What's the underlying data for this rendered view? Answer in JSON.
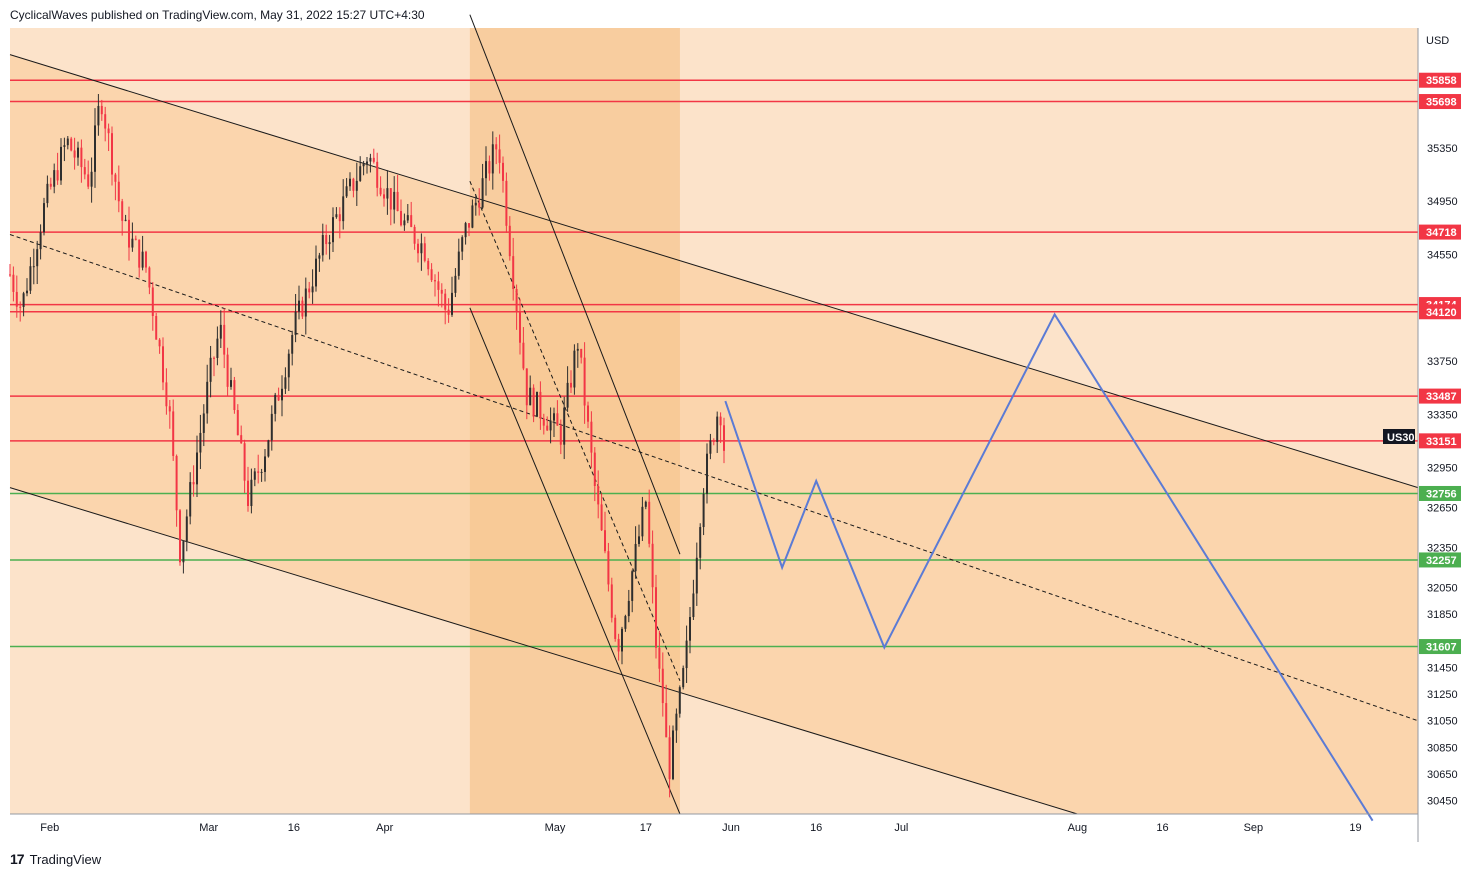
{
  "header": {
    "publisher": "CyclicalWaves",
    "published_text": "published on TradingView.com, May 31, 2022 15:27 UTC+4:30"
  },
  "footer": {
    "brand": "TradingView",
    "logo_glyph": "17"
  },
  "colors": {
    "background": "#fce3ca",
    "zone": "#fbd5ad",
    "zone_dark": "#f7c690",
    "resistance": "#f23645",
    "support": "#4caf50",
    "projection": "#5b7bd5",
    "candle_up": "#2e2e2e",
    "candle_down": "#f23645"
  },
  "chart_data": {
    "type": "candlestick",
    "symbol": "US30",
    "currency": "USD",
    "x_ticks": [
      "Feb",
      "Mar",
      "16",
      "Apr",
      "May",
      "17",
      "Jun",
      "16",
      "Jul",
      "Aug",
      "16",
      "Sep",
      "19"
    ],
    "y_ticks": [
      35350,
      34950,
      34550,
      33750,
      33350,
      32950,
      32650,
      32350,
      32050,
      31850,
      31450,
      31250,
      31050,
      30850,
      30650,
      30450
    ],
    "ylim": [
      30350,
      36250
    ],
    "horizontal_levels": [
      {
        "value": 35858,
        "label": "35858",
        "kind": "resistance"
      },
      {
        "value": 35698,
        "label": "35698",
        "kind": "resistance"
      },
      {
        "value": 34718,
        "label": "34718",
        "kind": "resistance"
      },
      {
        "value": 34174,
        "label": "34174",
        "kind": "resistance"
      },
      {
        "value": 34120,
        "label": "34120",
        "kind": "resistance"
      },
      {
        "value": 33487,
        "label": "33487",
        "kind": "resistance"
      },
      {
        "value": 33151,
        "label": "33151",
        "kind": "resistance"
      },
      {
        "value": 32756,
        "label": "32756",
        "kind": "support"
      },
      {
        "value": 32257,
        "label": "32257",
        "kind": "support"
      },
      {
        "value": 31607,
        "label": "31607",
        "kind": "support"
      }
    ],
    "price_path": [
      [
        "2022-01-25",
        34400
      ],
      [
        "2022-01-27",
        34150
      ],
      [
        "2022-01-31",
        34900
      ],
      [
        "2022-02-04",
        35400
      ],
      [
        "2022-02-08",
        35100
      ],
      [
        "2022-02-10",
        35750
      ],
      [
        "2022-02-14",
        34750
      ],
      [
        "2022-02-18",
        34450
      ],
      [
        "2022-02-22",
        33400
      ],
      [
        "2022-02-24",
        32300
      ],
      [
        "2022-03-01",
        33600
      ],
      [
        "2022-03-03",
        34000
      ],
      [
        "2022-03-08",
        32700
      ],
      [
        "2022-03-11",
        33100
      ],
      [
        "2022-03-16",
        34000
      ],
      [
        "2022-03-22",
        34700
      ],
      [
        "2022-03-29",
        35300
      ],
      [
        "2022-04-04",
        34800
      ],
      [
        "2022-04-08",
        34600
      ],
      [
        "2022-04-12",
        34100
      ],
      [
        "2022-04-15",
        34700
      ],
      [
        "2022-04-21",
        35400
      ],
      [
        "2022-04-26",
        33500
      ],
      [
        "2022-05-02",
        33200
      ],
      [
        "2022-05-05",
        33900
      ],
      [
        "2022-05-08",
        32800
      ],
      [
        "2022-05-12",
        31600
      ],
      [
        "2022-05-17",
        32700
      ],
      [
        "2022-05-19",
        31500
      ],
      [
        "2022-05-20",
        31200
      ],
      [
        "2022-05-21",
        30650
      ],
      [
        "2022-05-24",
        31500
      ],
      [
        "2022-05-27",
        32800
      ],
      [
        "2022-05-30",
        33450
      ],
      [
        "2022-05-31",
        33000
      ]
    ],
    "projection_path": [
      [
        "2022-05-31",
        33450
      ],
      [
        "2022-06-10",
        32200
      ],
      [
        "2022-06-16",
        32850
      ],
      [
        "2022-06-28",
        31600
      ],
      [
        "2022-07-28",
        34100
      ],
      [
        "2022-09-22",
        30300
      ]
    ],
    "trendlines": [
      {
        "name": "channel-upper",
        "from": [
          "2022-01-25",
          36050
        ],
        "to": [
          "2022-09-30",
          32800
        ],
        "style": "solid"
      },
      {
        "name": "channel-lower",
        "from": [
          "2022-01-25",
          32800
        ],
        "to": [
          "2022-08-01",
          30350
        ],
        "style": "solid"
      },
      {
        "name": "channel-mid",
        "from": [
          "2022-01-25",
          34700
        ],
        "to": [
          "2022-09-30",
          31050
        ],
        "style": "dashed"
      },
      {
        "name": "steep-upper",
        "from": [
          "2022-04-16",
          36350
        ],
        "to": [
          "2022-05-23",
          32300
        ],
        "style": "solid"
      },
      {
        "name": "steep-lower",
        "from": [
          "2022-04-16",
          34150
        ],
        "to": [
          "2022-05-23",
          30350
        ],
        "style": "solid"
      },
      {
        "name": "steep-mid",
        "from": [
          "2022-04-16",
          35100
        ],
        "to": [
          "2022-05-23",
          31350
        ],
        "style": "dashed"
      }
    ]
  }
}
